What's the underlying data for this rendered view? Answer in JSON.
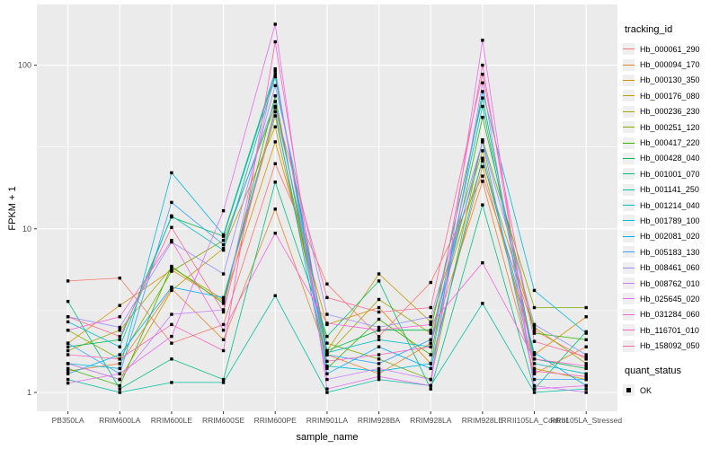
{
  "chart_data": {
    "type": "line",
    "title": "",
    "xlabel": "sample_name",
    "ylabel": "FPKM + 1",
    "y_scale": "log10",
    "ylim": [
      0.93,
      230
    ],
    "y_ticks": [
      1,
      10,
      100
    ],
    "y_tick_labels": [
      "1",
      "10",
      "100"
    ],
    "y_minor": [
      3.1623,
      31.623
    ],
    "grid": true,
    "categories": [
      "PB350LA",
      "RRIM600LA",
      "RRIM600LE",
      "RRIM600SE",
      "RRIM600PE",
      "RRIM901LA",
      "RRIM928BA",
      "RRIM928LA",
      "RRIM928LE",
      "RRII105LA_Control",
      "RRII105LA_Stressed"
    ],
    "series": [
      {
        "name": "Hb_000061_290",
        "color": "#F8766D",
        "values": [
          4.8,
          5.0,
          2.0,
          2.6,
          25,
          4.6,
          2.2,
          4.7,
          21,
          2.4,
          1.6
        ]
      },
      {
        "name": "Hb_000094_170",
        "color": "#EA8331",
        "values": [
          1.35,
          1.5,
          4.3,
          2.1,
          13.2,
          1.7,
          1.3,
          2.0,
          19.5,
          1.3,
          1.9
        ]
      },
      {
        "name": "Hb_000130_350",
        "color": "#D89000",
        "values": [
          2.0,
          3.4,
          5.6,
          3.6,
          34,
          2.6,
          3.3,
          1.5,
          24,
          1.7,
          2.9
        ]
      },
      {
        "name": "Hb_000176_080",
        "color": "#C09B00",
        "values": [
          1.5,
          1.2,
          4.2,
          7.6,
          42,
          1.8,
          5.3,
          2.7,
          30,
          1.4,
          1.2
        ]
      },
      {
        "name": "Hb_000236_230",
        "color": "#A3A500",
        "values": [
          1.8,
          2.4,
          5.8,
          3.7,
          49,
          1.7,
          3.7,
          2.3,
          26,
          2.5,
          1.5
        ]
      },
      {
        "name": "Hb_000251_120",
        "color": "#7CAE00",
        "values": [
          2.4,
          1.6,
          5.5,
          8.5,
          56,
          2.0,
          1.6,
          1.2,
          35,
          3.3,
          3.3
        ]
      },
      {
        "name": "Hb_000417_220",
        "color": "#39B600",
        "values": [
          1.4,
          1.1,
          5.9,
          3.5,
          65,
          1.4,
          2.8,
          1.7,
          48,
          2.3,
          2.1
        ]
      },
      {
        "name": "Hb_000428_040",
        "color": "#00BB4E",
        "values": [
          1.9,
          2.1,
          11.8,
          9.0,
          88,
          1.8,
          2.4,
          2.4,
          63,
          1.6,
          1.4
        ]
      },
      {
        "name": "Hb_001001_070",
        "color": "#00BF7D",
        "values": [
          3.6,
          1.05,
          1.6,
          1.2,
          19.3,
          2.2,
          4.8,
          1.05,
          14,
          1.05,
          2.35
        ]
      },
      {
        "name": "Hb_001141_250",
        "color": "#00C1A3",
        "values": [
          1.2,
          1.0,
          1.15,
          1.15,
          3.9,
          1.0,
          1.2,
          1.1,
          3.5,
          1.0,
          1.05
        ]
      },
      {
        "name": "Hb_001214_040",
        "color": "#00BFC4",
        "values": [
          2.7,
          1.9,
          12,
          7.4,
          85,
          1.75,
          2.1,
          1.9,
          56,
          1.5,
          1.3
        ]
      },
      {
        "name": "Hb_001789_100",
        "color": "#00BAE0",
        "values": [
          1.5,
          1.4,
          22,
          9.2,
          92,
          1.45,
          1.35,
          1.5,
          69,
          4.2,
          2.3
        ]
      },
      {
        "name": "Hb_002081_020",
        "color": "#00B0F6",
        "values": [
          1.3,
          1.7,
          4.4,
          3.8,
          52,
          1.3,
          1.9,
          1.4,
          27,
          1.75,
          1.1
        ]
      },
      {
        "name": "Hb_005183_130",
        "color": "#35A2FF",
        "values": [
          2.0,
          1.3,
          14.5,
          8.0,
          60,
          1.7,
          1.5,
          2.1,
          34,
          1.2,
          1.2
        ]
      },
      {
        "name": "Hb_008461_060",
        "color": "#9590FF",
        "values": [
          2.9,
          2.5,
          8.3,
          5.3,
          75,
          3.0,
          2.5,
          2.9,
          34,
          2.6,
          1.7
        ]
      },
      {
        "name": "Hb_008762_010",
        "color": "#C77CFF",
        "values": [
          1.5,
          1.2,
          3.0,
          3.2,
          95,
          1.2,
          1.4,
          1.2,
          78,
          1.1,
          1.0
        ]
      },
      {
        "name": "Hb_025645_020",
        "color": "#E76BF3",
        "values": [
          1.14,
          1.3,
          2.2,
          12.9,
          178,
          1.05,
          1.25,
          1.1,
          142,
          1.05,
          1.1
        ]
      },
      {
        "name": "Hb_031284_060",
        "color": "#FA62DB",
        "values": [
          2.4,
          2.9,
          8.5,
          2.4,
          9.4,
          2.65,
          2.4,
          2.6,
          6.2,
          1.6,
          1.45
        ]
      },
      {
        "name": "Hb_116701_010",
        "color": "#FF62BC",
        "values": [
          1.7,
          1.6,
          2.6,
          1.8,
          139,
          1.55,
          1.7,
          1.9,
          100,
          1.35,
          1.25
        ]
      },
      {
        "name": "Hb_158092_050",
        "color": "#FF6A98",
        "values": [
          2.9,
          2.2,
          10.2,
          3.1,
          55,
          3.8,
          3.1,
          3.3,
          88,
          2.05,
          1.65
        ]
      }
    ],
    "legend": {
      "position": "right",
      "color_title": "tracking_id",
      "shape_title": "quant_status",
      "shape_items": [
        {
          "label": "OK",
          "shape": "square",
          "color": "#000000"
        }
      ]
    },
    "style": {
      "panel_bg": "#EBEBEB",
      "grid_color": "#FFFFFF",
      "point_color": "#000000",
      "tick_color": "#333333",
      "tick_text": "#4D4D4D",
      "legend_key_bg": "#EFEFEF"
    }
  }
}
